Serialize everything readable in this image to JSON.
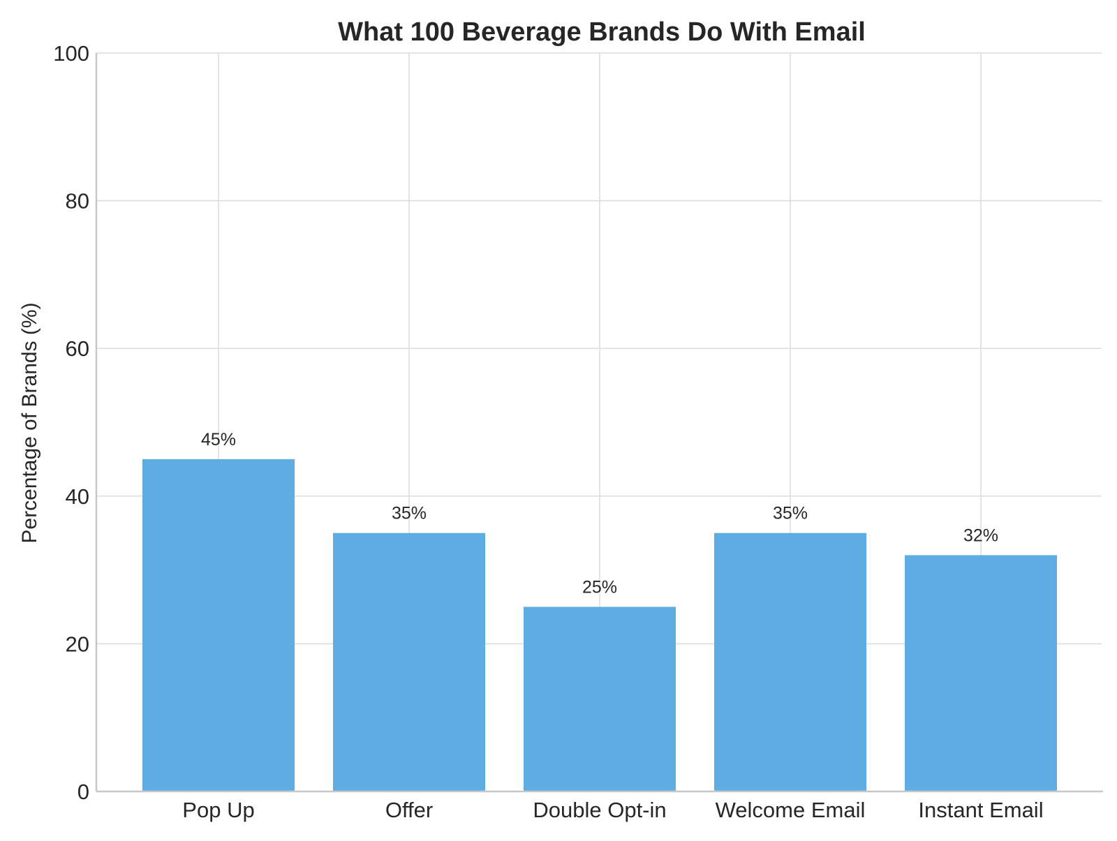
{
  "chart_data": {
    "type": "bar",
    "title": "What 100 Beverage Brands Do With Email",
    "xlabel": "",
    "ylabel": "Percentage of Brands (%)",
    "categories": [
      "Pop Up",
      "Offer",
      "Double Opt-in",
      "Welcome Email",
      "Instant Email"
    ],
    "values": [
      45,
      35,
      25,
      35,
      32
    ],
    "data_labels": [
      "45%",
      "35%",
      "25%",
      "35%",
      "32%"
    ],
    "ylim": [
      0,
      100
    ],
    "yticks": [
      0,
      20,
      40,
      60,
      80,
      100
    ],
    "grid": true,
    "legend": "none",
    "bar_color": "#5DADE2"
  }
}
